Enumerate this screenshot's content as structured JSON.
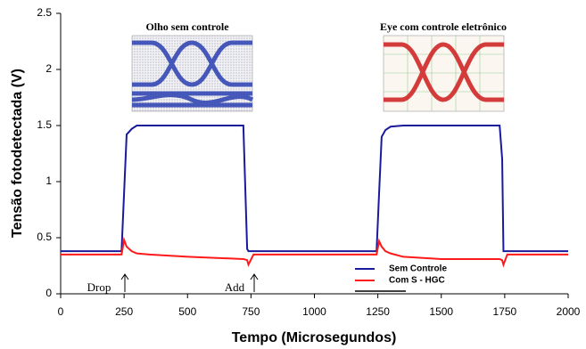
{
  "chart_data": {
    "type": "line",
    "x_label": "Tempo (Microsegundos)",
    "y_label": "Tensão fotodetectada (V)",
    "annotations": [
      "Olho sem controle",
      "Eye com controle eletrônico",
      "Drop",
      "Add"
    ],
    "x": [
      0,
      240,
      250,
      260,
      280,
      300,
      350,
      500,
      720,
      735,
      740,
      760,
      1000,
      1245,
      1255,
      1265,
      1280,
      1300,
      1350,
      1500,
      1730,
      1740,
      1745,
      1760,
      2000
    ],
    "series": [
      {
        "name": "Sem Controle",
        "color": "#1a1a9c",
        "values": [
          0.38,
          0.38,
          0.9,
          1.42,
          1.47,
          1.5,
          1.5,
          1.5,
          1.5,
          0.4,
          0.38,
          0.38,
          0.38,
          0.38,
          0.9,
          1.4,
          1.46,
          1.49,
          1.5,
          1.5,
          1.5,
          1.2,
          0.38,
          0.38,
          0.38
        ]
      },
      {
        "name": "Com S - HGC",
        "color": "#ff1a1a",
        "values": [
          0.35,
          0.35,
          0.48,
          0.42,
          0.38,
          0.36,
          0.35,
          0.33,
          0.31,
          0.3,
          0.26,
          0.35,
          0.35,
          0.35,
          0.47,
          0.42,
          0.38,
          0.36,
          0.33,
          0.31,
          0.31,
          0.3,
          0.26,
          0.35,
          0.35
        ]
      }
    ],
    "xlim": [
      0,
      2000
    ],
    "xticks": [
      0,
      250,
      500,
      750,
      1000,
      1250,
      1500,
      1750,
      2000
    ],
    "ylim": [
      0,
      2.5
    ],
    "yticks": [
      0,
      0.5,
      1,
      1.5,
      2,
      2.5
    ],
    "grid": false,
    "legend": "lower right"
  }
}
